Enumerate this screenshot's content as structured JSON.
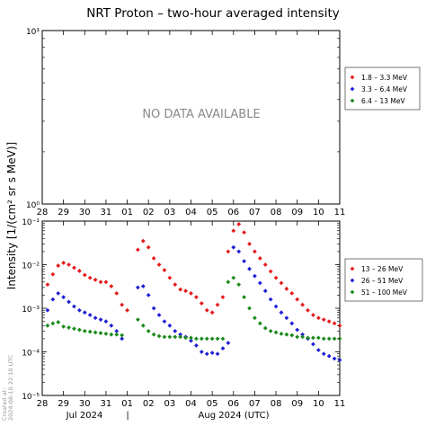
{
  "chart_data": [
    {
      "type": "scatter",
      "title": "NRT Proton – two-hour averaged intensity",
      "panel": "upper",
      "ylim": [
        1,
        10
      ],
      "yscale": "log",
      "y_ticks": [
        "10⁰",
        "10¹"
      ],
      "x_ticks": [
        "28",
        "29",
        "30",
        "31",
        "01",
        "02",
        "03",
        "04",
        "05",
        "06",
        "07",
        "08",
        "09",
        "10",
        "11"
      ],
      "xlim": [
        "2024-07-28",
        "2024-08-11"
      ],
      "annotation": "NO DATA AVAILABLE",
      "legend_position": "right",
      "series": [
        {
          "name": "1.8 – 3.3 MeV",
          "color": "#e41a1c",
          "points": []
        },
        {
          "name": "3.3 – 6.4 MeV",
          "color": "#1f1fd6",
          "points": []
        },
        {
          "name": "6.4 – 13 MeV",
          "color": "#1a8a1a",
          "points": []
        }
      ]
    },
    {
      "type": "scatter",
      "panel": "lower",
      "ylabel": "Intensity [1/(cm² sr s MeV)]",
      "yscale": "log",
      "ylim": [
        1e-05,
        0.1
      ],
      "y_ticks": [
        "10⁻⁵",
        "10⁻⁴",
        "10⁻³",
        "10⁻²",
        "10⁻¹"
      ],
      "x_ticks": [
        "28",
        "29",
        "30",
        "31",
        "01",
        "02",
        "03",
        "04",
        "05",
        "06",
        "07",
        "08",
        "09",
        "10",
        "11"
      ],
      "xlim": [
        "2024-07-28",
        "2024-08-11"
      ],
      "month_labels": [
        "Jul 2024",
        "|",
        "Aug 2024 (UTC)"
      ],
      "legend_position": "right",
      "series": [
        {
          "name": "13 – 26 MeV",
          "color": "#e41a1c",
          "points": [
            [
              "2024-07-28 06:00",
              0.0035
            ],
            [
              "2024-07-28 12:00",
              0.006
            ],
            [
              "2024-07-28 18:00",
              0.0095
            ],
            [
              "2024-07-29 00:00",
              0.011
            ],
            [
              "2024-07-29 06:00",
              0.01
            ],
            [
              "2024-07-29 12:00",
              0.0085
            ],
            [
              "2024-07-29 18:00",
              0.0072
            ],
            [
              "2024-07-30 00:00",
              0.0058
            ],
            [
              "2024-07-30 06:00",
              0.005
            ],
            [
              "2024-07-30 12:00",
              0.0045
            ],
            [
              "2024-07-30 18:00",
              0.004
            ],
            [
              "2024-07-31 00:00",
              0.004
            ],
            [
              "2024-07-31 06:00",
              0.0032
            ],
            [
              "2024-07-31 12:00",
              0.0022
            ],
            [
              "2024-07-31 18:00",
              0.0012
            ],
            [
              "2024-08-01 00:00",
              0.0009
            ],
            [
              "2024-08-01 12:00",
              0.022
            ],
            [
              "2024-08-01 18:00",
              0.035
            ],
            [
              "2024-08-02 00:00",
              0.025
            ],
            [
              "2024-08-02 06:00",
              0.014
            ],
            [
              "2024-08-02 12:00",
              0.01
            ],
            [
              "2024-08-02 18:00",
              0.0075
            ],
            [
              "2024-08-03 00:00",
              0.005
            ],
            [
              "2024-08-03 06:00",
              0.0035
            ],
            [
              "2024-08-03 12:00",
              0.0027
            ],
            [
              "2024-08-03 18:00",
              0.0025
            ],
            [
              "2024-08-04 00:00",
              0.0022
            ],
            [
              "2024-08-04 06:00",
              0.0018
            ],
            [
              "2024-08-04 12:00",
              0.0013
            ],
            [
              "2024-08-04 18:00",
              0.0009
            ],
            [
              "2024-08-05 00:00",
              0.0008
            ],
            [
              "2024-08-05 06:00",
              0.0012
            ],
            [
              "2024-08-05 12:00",
              0.0018
            ],
            [
              "2024-08-05 18:00",
              0.02
            ],
            [
              "2024-08-06 00:00",
              0.06
            ],
            [
              "2024-08-06 06:00",
              0.085
            ],
            [
              "2024-08-06 12:00",
              0.055
            ],
            [
              "2024-08-06 18:00",
              0.03
            ],
            [
              "2024-08-07 00:00",
              0.02
            ],
            [
              "2024-08-07 06:00",
              0.014
            ],
            [
              "2024-08-07 12:00",
              0.01
            ],
            [
              "2024-08-07 18:00",
              0.007
            ],
            [
              "2024-08-08 00:00",
              0.005
            ],
            [
              "2024-08-08 06:00",
              0.0038
            ],
            [
              "2024-08-08 12:00",
              0.0028
            ],
            [
              "2024-08-08 18:00",
              0.0022
            ],
            [
              "2024-08-09 00:00",
              0.0016
            ],
            [
              "2024-08-09 06:00",
              0.0012
            ],
            [
              "2024-08-09 12:00",
              0.0009
            ],
            [
              "2024-08-09 18:00",
              0.0007
            ],
            [
              "2024-08-10 00:00",
              0.0006
            ],
            [
              "2024-08-10 06:00",
              0.00055
            ],
            [
              "2024-08-10 12:00",
              0.0005
            ],
            [
              "2024-08-10 18:00",
              0.00045
            ],
            [
              "2024-08-11 00:00",
              0.0004
            ]
          ]
        },
        {
          "name": "26 – 51 MeV",
          "color": "#1f1fd6",
          "points": [
            [
              "2024-07-28 06:00",
              0.0009
            ],
            [
              "2024-07-28 12:00",
              0.0016
            ],
            [
              "2024-07-28 18:00",
              0.0022
            ],
            [
              "2024-07-29 00:00",
              0.0018
            ],
            [
              "2024-07-29 06:00",
              0.0014
            ],
            [
              "2024-07-29 12:00",
              0.0011
            ],
            [
              "2024-07-29 18:00",
              0.0009
            ],
            [
              "2024-07-30 00:00",
              0.0008
            ],
            [
              "2024-07-30 06:00",
              0.0007
            ],
            [
              "2024-07-30 12:00",
              0.0006
            ],
            [
              "2024-07-30 18:00",
              0.00055
            ],
            [
              "2024-07-31 00:00",
              0.0005
            ],
            [
              "2024-07-31 06:00",
              0.0004
            ],
            [
              "2024-07-31 12:00",
              0.0003
            ],
            [
              "2024-07-31 18:00",
              0.0002
            ],
            [
              "2024-08-01 12:00",
              0.003
            ],
            [
              "2024-08-01 18:00",
              0.0032
            ],
            [
              "2024-08-02 00:00",
              0.002
            ],
            [
              "2024-08-02 06:00",
              0.001
            ],
            [
              "2024-08-02 12:00",
              0.0007
            ],
            [
              "2024-08-02 18:00",
              0.0005
            ],
            [
              "2024-08-03 00:00",
              0.0004
            ],
            [
              "2024-08-03 06:00",
              0.0003
            ],
            [
              "2024-08-03 12:00",
              0.00025
            ],
            [
              "2024-08-03 18:00",
              0.00022
            ],
            [
              "2024-08-04 00:00",
              0.00018
            ],
            [
              "2024-08-04 06:00",
              0.00014
            ],
            [
              "2024-08-04 12:00",
              0.0001
            ],
            [
              "2024-08-04 18:00",
              9e-05
            ],
            [
              "2024-08-05 00:00",
              9.5e-05
            ],
            [
              "2024-08-05 06:00",
              9e-05
            ],
            [
              "2024-08-05 12:00",
              0.00012
            ],
            [
              "2024-08-05 18:00",
              0.00016
            ],
            [
              "2024-08-06 00:00",
              0.025
            ],
            [
              "2024-08-06 06:00",
              0.02
            ],
            [
              "2024-08-06 12:00",
              0.012
            ],
            [
              "2024-08-06 18:00",
              0.008
            ],
            [
              "2024-08-07 00:00",
              0.0055
            ],
            [
              "2024-08-07 06:00",
              0.0038
            ],
            [
              "2024-08-07 12:00",
              0.0025
            ],
            [
              "2024-08-07 18:00",
              0.0016
            ],
            [
              "2024-08-08 00:00",
              0.0011
            ],
            [
              "2024-08-08 06:00",
              0.0008
            ],
            [
              "2024-08-08 12:00",
              0.0006
            ],
            [
              "2024-08-08 18:00",
              0.00045
            ],
            [
              "2024-08-09 00:00",
              0.00032
            ],
            [
              "2024-08-09 06:00",
              0.00025
            ],
            [
              "2024-08-09 12:00",
              0.0002
            ],
            [
              "2024-08-09 18:00",
              0.00015
            ],
            [
              "2024-08-10 00:00",
              0.00011
            ],
            [
              "2024-08-10 06:00",
              9e-05
            ],
            [
              "2024-08-10 12:00",
              8e-05
            ],
            [
              "2024-08-10 18:00",
              7e-05
            ],
            [
              "2024-08-11 00:00",
              6.5e-05
            ]
          ]
        },
        {
          "name": "51 – 100 MeV",
          "color": "#1a8a1a",
          "points": [
            [
              "2024-07-28 06:00",
              0.0004
            ],
            [
              "2024-07-28 12:00",
              0.00045
            ],
            [
              "2024-07-28 18:00",
              0.00048
            ],
            [
              "2024-07-29 00:00",
              0.00038
            ],
            [
              "2024-07-29 06:00",
              0.00036
            ],
            [
              "2024-07-29 12:00",
              0.00034
            ],
            [
              "2024-07-29 18:00",
              0.00032
            ],
            [
              "2024-07-30 00:00",
              0.0003
            ],
            [
              "2024-07-30 06:00",
              0.00029
            ],
            [
              "2024-07-30 12:00",
              0.00028
            ],
            [
              "2024-07-30 18:00",
              0.00027
            ],
            [
              "2024-07-31 00:00",
              0.00026
            ],
            [
              "2024-07-31 06:00",
              0.00025
            ],
            [
              "2024-07-31 12:00",
              0.00025
            ],
            [
              "2024-07-31 18:00",
              0.00024
            ],
            [
              "2024-08-01 12:00",
              0.00055
            ],
            [
              "2024-08-01 18:00",
              0.0004
            ],
            [
              "2024-08-02 00:00",
              0.0003
            ],
            [
              "2024-08-02 06:00",
              0.00025
            ],
            [
              "2024-08-02 12:00",
              0.00023
            ],
            [
              "2024-08-02 18:00",
              0.00022
            ],
            [
              "2024-08-03 00:00",
              0.00022
            ],
            [
              "2024-08-03 06:00",
              0.00022
            ],
            [
              "2024-08-03 12:00",
              0.00022
            ],
            [
              "2024-08-03 18:00",
              0.00021
            ],
            [
              "2024-08-04 00:00",
              0.00021
            ],
            [
              "2024-08-04 06:00",
              0.0002
            ],
            [
              "2024-08-04 12:00",
              0.0002
            ],
            [
              "2024-08-04 18:00",
              0.0002
            ],
            [
              "2024-08-05 00:00",
              0.0002
            ],
            [
              "2024-08-05 06:00",
              0.0002
            ],
            [
              "2024-08-05 12:00",
              0.0002
            ],
            [
              "2024-08-05 18:00",
              0.004
            ],
            [
              "2024-08-06 00:00",
              0.005
            ],
            [
              "2024-08-06 06:00",
              0.0035
            ],
            [
              "2024-08-06 12:00",
              0.0018
            ],
            [
              "2024-08-06 18:00",
              0.001
            ],
            [
              "2024-08-07 00:00",
              0.0006
            ],
            [
              "2024-08-07 06:00",
              0.00045
            ],
            [
              "2024-08-07 12:00",
              0.00035
            ],
            [
              "2024-08-07 18:00",
              0.0003
            ],
            [
              "2024-08-08 00:00",
              0.00028
            ],
            [
              "2024-08-08 06:00",
              0.00026
            ],
            [
              "2024-08-08 12:00",
              0.00025
            ],
            [
              "2024-08-08 18:00",
              0.00024
            ],
            [
              "2024-08-09 00:00",
              0.00022
            ],
            [
              "2024-08-09 06:00",
              0.00022
            ],
            [
              "2024-08-09 12:00",
              0.00021
            ],
            [
              "2024-08-09 18:00",
              0.00021
            ],
            [
              "2024-08-10 00:00",
              0.00021
            ],
            [
              "2024-08-10 06:00",
              0.0002
            ],
            [
              "2024-08-10 12:00",
              0.0002
            ],
            [
              "2024-08-10 18:00",
              0.0002
            ],
            [
              "2024-08-11 00:00",
              0.0002
            ]
          ]
        }
      ]
    }
  ],
  "footer": {
    "created_label": "Created at:",
    "created_time": "2024-08-10 22:10 UTC"
  }
}
